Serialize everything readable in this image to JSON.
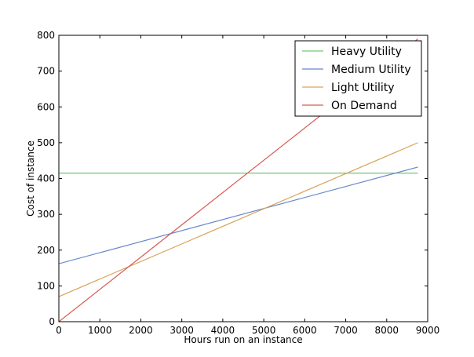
{
  "chart_data": {
    "type": "line",
    "title": "",
    "xlabel": "Hours run on an instance",
    "ylabel": "Cost of instance",
    "xlim": [
      0,
      9000
    ],
    "ylim": [
      0,
      800
    ],
    "xticks": [
      "0",
      "1000",
      "2000",
      "3000",
      "4000",
      "5000",
      "6000",
      "7000",
      "8000",
      "9000"
    ],
    "yticks": [
      "0",
      "100",
      "200",
      "300",
      "400",
      "500",
      "600",
      "700",
      "800"
    ],
    "grid": false,
    "legend_position": "top-right",
    "series": [
      {
        "name": "Heavy Utility",
        "color": "#6fc96f",
        "x": [
          0,
          8760
        ],
        "y": [
          415,
          415
        ]
      },
      {
        "name": "Medium Utility",
        "color": "#6685cc",
        "x": [
          0,
          8760
        ],
        "y": [
          162,
          432
        ]
      },
      {
        "name": "Light Utility",
        "color": "#d9a45a",
        "x": [
          0,
          8760
        ],
        "y": [
          70,
          500
        ]
      },
      {
        "name": "On Demand",
        "color": "#d65a4f",
        "x": [
          0,
          8760
        ],
        "y": [
          0,
          790
        ]
      }
    ]
  }
}
